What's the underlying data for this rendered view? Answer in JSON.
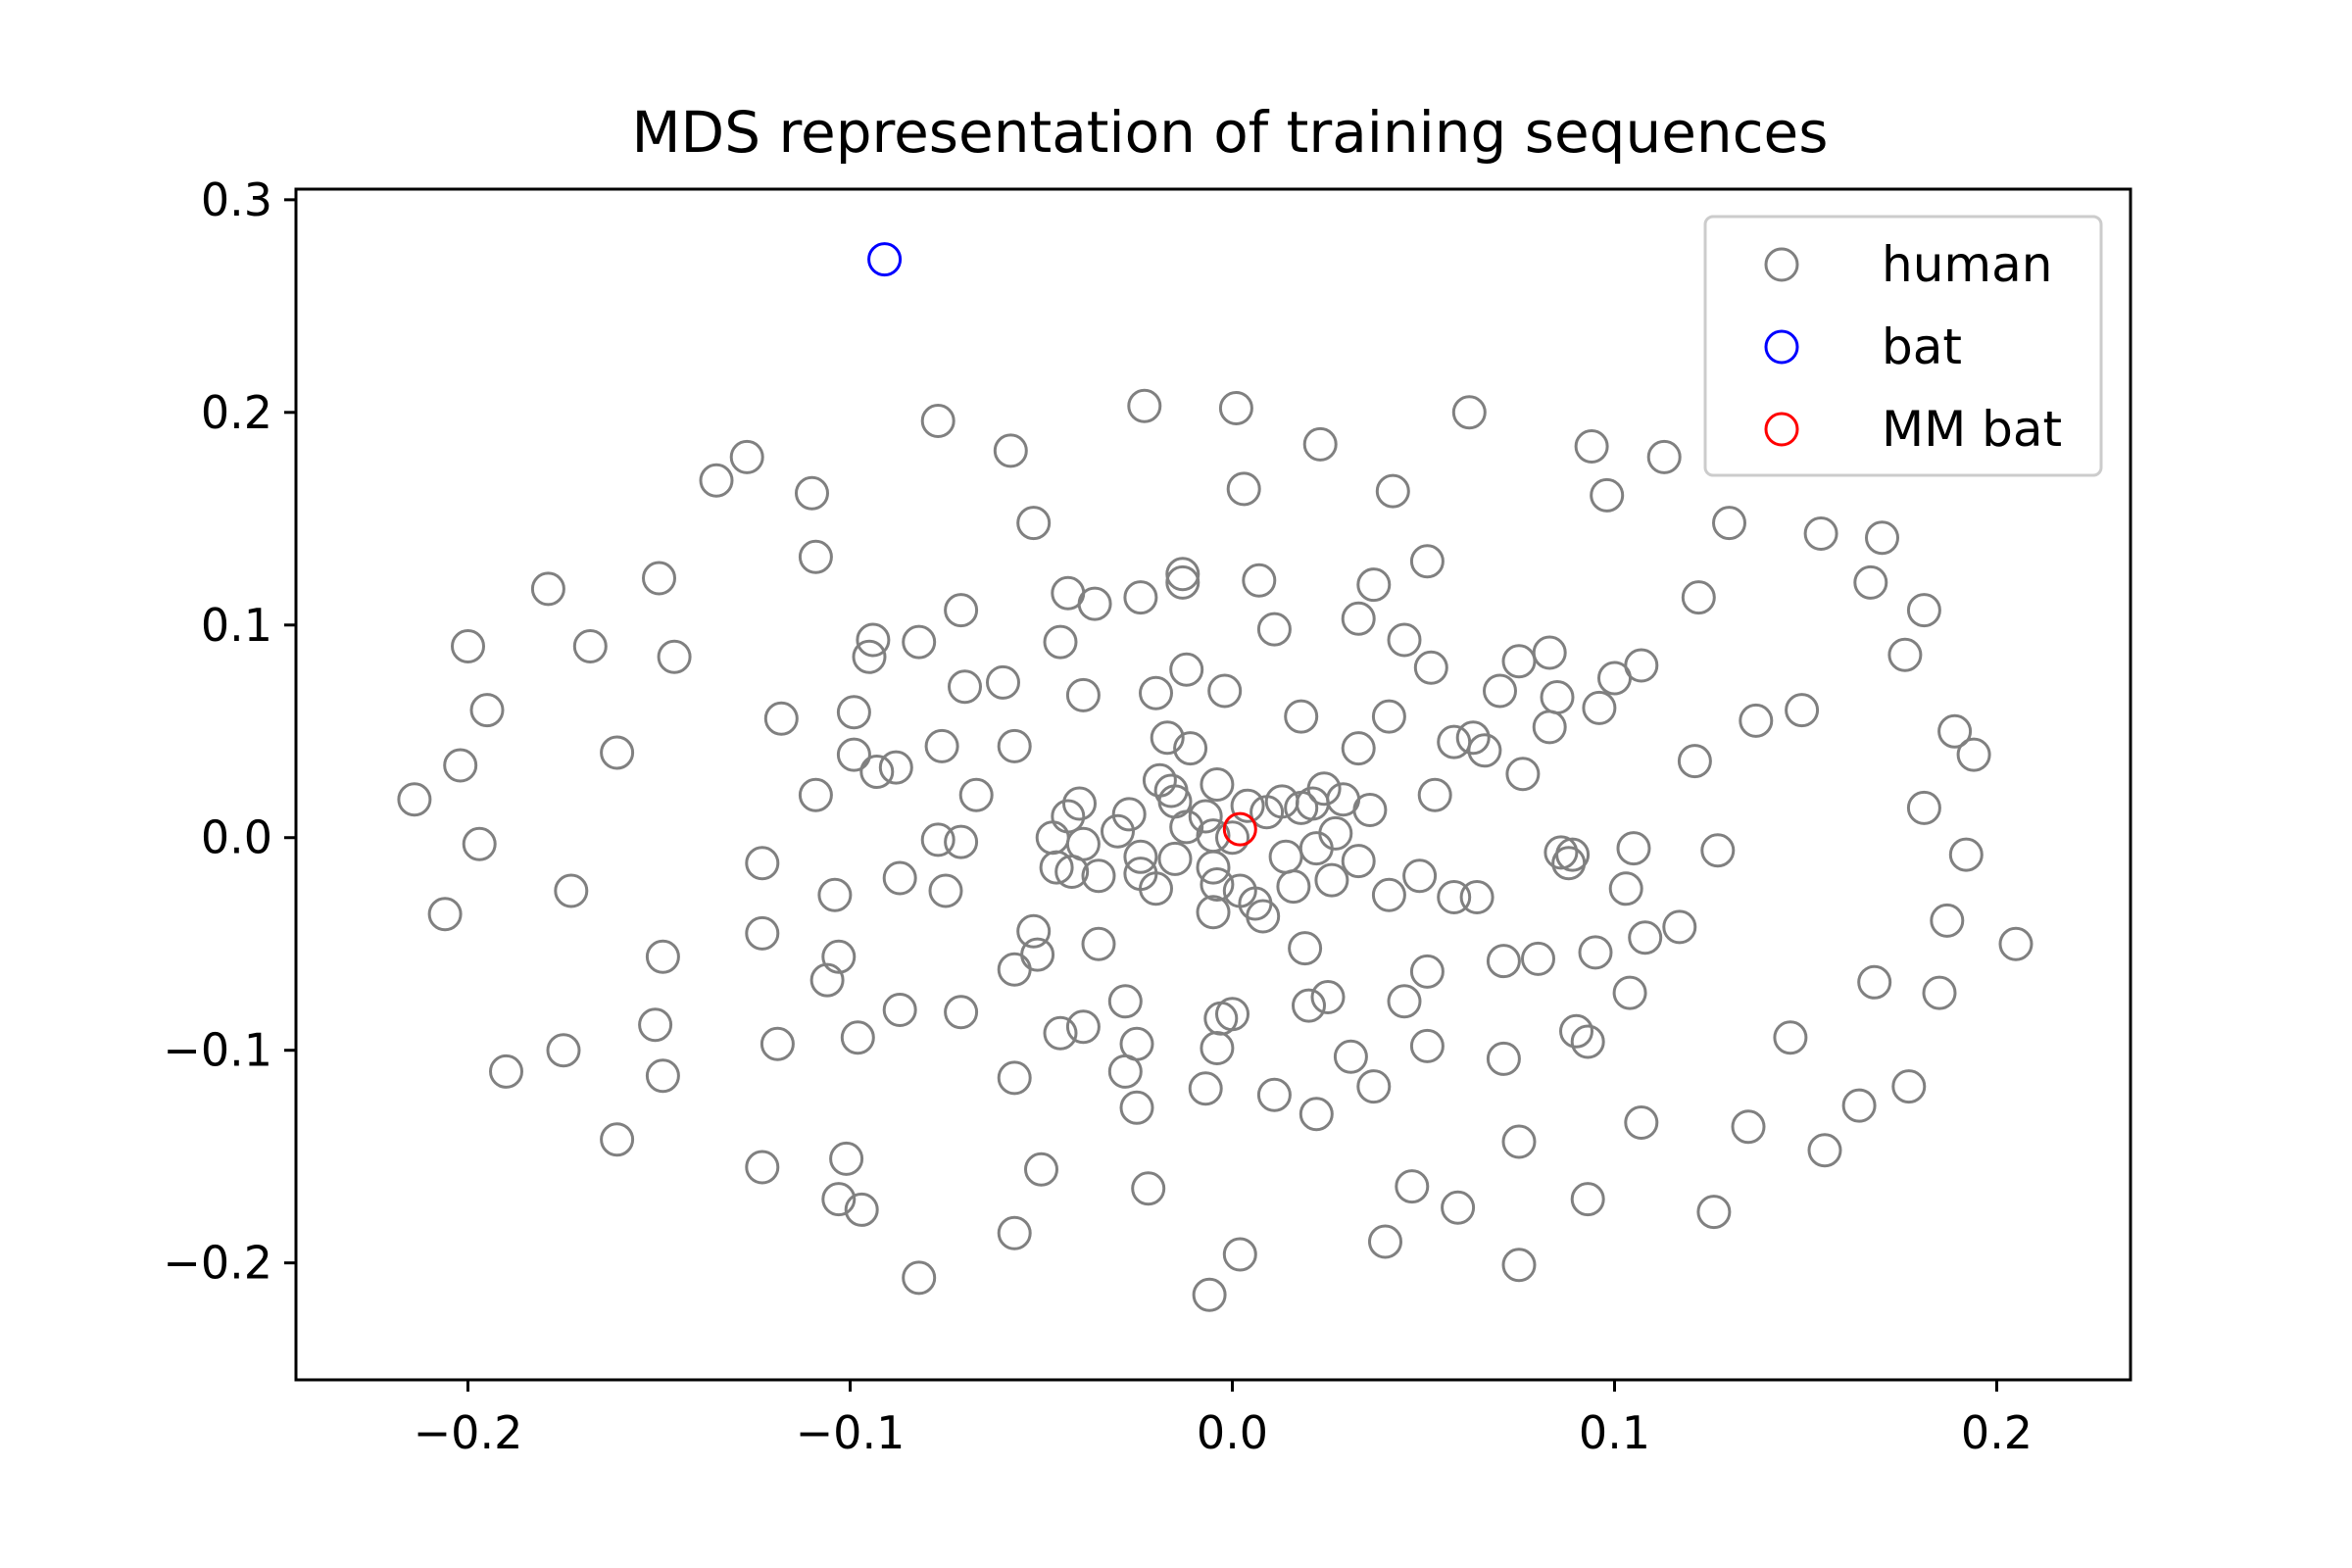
{
  "chart_data": {
    "type": "scatter",
    "title": "MDS representation of training sequences",
    "xlabel": "",
    "ylabel": "",
    "xlim": [
      -0.245,
      0.235
    ],
    "ylim": [
      -0.255,
      0.305
    ],
    "xticks": [
      {
        "value": -0.2,
        "label": "−0.2"
      },
      {
        "value": -0.1,
        "label": "−0.1"
      },
      {
        "value": 0.0,
        "label": "0.0"
      },
      {
        "value": 0.1,
        "label": "0.1"
      },
      {
        "value": 0.2,
        "label": "0.2"
      }
    ],
    "yticks": [
      {
        "value": 0.3,
        "label": "0.3"
      },
      {
        "value": 0.2,
        "label": "0.2"
      },
      {
        "value": 0.1,
        "label": "0.1"
      },
      {
        "value": 0.0,
        "label": "0.0"
      },
      {
        "value": -0.1,
        "label": "−0.1"
      },
      {
        "value": -0.2,
        "label": "−0.2"
      }
    ],
    "grid": false,
    "legend_position": "top-right",
    "series": [
      {
        "name": "human",
        "color": "#808080",
        "marker": "open-circle",
        "points": [
          [
            -0.2,
            0.09
          ],
          [
            -0.195,
            0.06
          ],
          [
            -0.214,
            0.018
          ],
          [
            -0.202,
            0.034
          ],
          [
            -0.197,
            -0.003
          ],
          [
            -0.206,
            -0.036
          ],
          [
            -0.19,
            -0.11
          ],
          [
            -0.179,
            0.117
          ],
          [
            -0.168,
            0.09
          ],
          [
            -0.173,
            -0.025
          ],
          [
            -0.175,
            -0.1
          ],
          [
            -0.161,
            0.04
          ],
          [
            -0.161,
            -0.142
          ],
          [
            -0.15,
            0.122
          ],
          [
            -0.146,
            0.085
          ],
          [
            -0.149,
            -0.056
          ],
          [
            -0.151,
            -0.088
          ],
          [
            -0.149,
            -0.112
          ],
          [
            -0.135,
            0.168
          ],
          [
            -0.127,
            0.179
          ],
          [
            -0.123,
            -0.012
          ],
          [
            -0.123,
            -0.045
          ],
          [
            -0.123,
            -0.155
          ],
          [
            -0.118,
            0.056
          ],
          [
            -0.119,
            -0.097
          ],
          [
            -0.11,
            0.162
          ],
          [
            -0.109,
            0.132
          ],
          [
            -0.109,
            0.02
          ],
          [
            -0.106,
            -0.067
          ],
          [
            -0.104,
            -0.027
          ],
          [
            -0.103,
            -0.056
          ],
          [
            -0.103,
            -0.17
          ],
          [
            -0.101,
            -0.151
          ],
          [
            -0.099,
            0.059
          ],
          [
            -0.099,
            0.039
          ],
          [
            -0.098,
            -0.094
          ],
          [
            -0.097,
            -0.175
          ],
          [
            -0.094,
            0.093
          ],
          [
            -0.095,
            0.085
          ],
          [
            -0.093,
            0.031
          ],
          [
            -0.088,
            0.033
          ],
          [
            -0.087,
            -0.019
          ],
          [
            -0.087,
            -0.081
          ],
          [
            -0.082,
            0.092
          ],
          [
            -0.082,
            -0.207
          ],
          [
            -0.077,
            0.196
          ],
          [
            -0.077,
            -0.001
          ],
          [
            -0.076,
            0.043
          ],
          [
            -0.075,
            -0.025
          ],
          [
            -0.071,
            0.107
          ],
          [
            -0.071,
            -0.002
          ],
          [
            -0.071,
            -0.082
          ],
          [
            -0.07,
            0.071
          ],
          [
            -0.067,
            0.02
          ],
          [
            -0.06,
            0.073
          ],
          [
            -0.058,
            0.182
          ],
          [
            -0.057,
            0.043
          ],
          [
            -0.057,
            -0.062
          ],
          [
            -0.057,
            -0.113
          ],
          [
            -0.057,
            -0.186
          ],
          [
            -0.052,
            0.148
          ],
          [
            -0.052,
            -0.044
          ],
          [
            -0.051,
            -0.055
          ],
          [
            -0.05,
            -0.156
          ],
          [
            -0.047,
            0.0
          ],
          [
            -0.046,
            -0.014
          ],
          [
            -0.045,
            0.092
          ],
          [
            -0.045,
            -0.092
          ],
          [
            -0.043,
            0.115
          ],
          [
            -0.043,
            0.01
          ],
          [
            -0.042,
            -0.016
          ],
          [
            -0.04,
            0.016
          ],
          [
            -0.039,
            0.067
          ],
          [
            -0.039,
            -0.003
          ],
          [
            -0.039,
            -0.089
          ],
          [
            -0.036,
            0.11
          ],
          [
            -0.035,
            -0.018
          ],
          [
            -0.035,
            -0.05
          ],
          [
            -0.03,
            0.003
          ],
          [
            -0.028,
            -0.077
          ],
          [
            -0.028,
            -0.11
          ],
          [
            -0.027,
            0.011
          ],
          [
            -0.025,
            -0.097
          ],
          [
            -0.025,
            -0.127
          ],
          [
            -0.024,
            0.113
          ],
          [
            -0.024,
            -0.009
          ],
          [
            -0.024,
            -0.017
          ],
          [
            -0.023,
            0.203
          ],
          [
            -0.022,
            -0.165
          ],
          [
            -0.02,
            0.068
          ],
          [
            -0.02,
            -0.024
          ],
          [
            -0.019,
            0.027
          ],
          [
            -0.017,
            0.047
          ],
          [
            -0.016,
            0.022
          ],
          [
            -0.015,
            0.017
          ],
          [
            -0.015,
            -0.01
          ],
          [
            -0.013,
            0.124
          ],
          [
            -0.013,
            0.12
          ],
          [
            -0.012,
            0.079
          ],
          [
            -0.012,
            0.005
          ],
          [
            -0.011,
            0.042
          ],
          [
            -0.007,
            0.01
          ],
          [
            -0.007,
            -0.118
          ],
          [
            -0.006,
            -0.215
          ],
          [
            -0.005,
            0.001
          ],
          [
            -0.005,
            -0.014
          ],
          [
            -0.005,
            -0.035
          ],
          [
            -0.004,
            0.025
          ],
          [
            -0.004,
            -0.022
          ],
          [
            -0.004,
            -0.099
          ],
          [
            -0.003,
            -0.085
          ],
          [
            -0.002,
            0.069
          ],
          [
            0.0,
            0.0
          ],
          [
            0.0,
            -0.083
          ],
          [
            0.001,
            0.202
          ],
          [
            0.002,
            -0.025
          ],
          [
            0.002,
            -0.196
          ],
          [
            0.003,
            0.164
          ],
          [
            0.004,
            0.015
          ],
          [
            0.006,
            -0.031
          ],
          [
            0.007,
            0.121
          ],
          [
            0.008,
            -0.037
          ],
          [
            0.009,
            0.012
          ],
          [
            0.011,
            0.098
          ],
          [
            0.011,
            -0.121
          ],
          [
            0.013,
            0.017
          ],
          [
            0.014,
            -0.009
          ],
          [
            0.016,
            -0.023
          ],
          [
            0.018,
            0.057
          ],
          [
            0.018,
            0.014
          ],
          [
            0.019,
            -0.052
          ],
          [
            0.02,
            -0.079
          ],
          [
            0.021,
            0.016
          ],
          [
            0.022,
            -0.005
          ],
          [
            0.022,
            -0.13
          ],
          [
            0.023,
            0.185
          ],
          [
            0.024,
            0.023
          ],
          [
            0.025,
            -0.075
          ],
          [
            0.026,
            -0.02
          ],
          [
            0.027,
            0.002
          ],
          [
            0.029,
            0.018
          ],
          [
            0.031,
            -0.103
          ],
          [
            0.033,
            0.103
          ],
          [
            0.033,
            0.042
          ],
          [
            0.033,
            -0.011
          ],
          [
            0.036,
            0.013
          ],
          [
            0.037,
            0.119
          ],
          [
            0.037,
            -0.117
          ],
          [
            0.04,
            -0.19
          ],
          [
            0.041,
            0.057
          ],
          [
            0.041,
            -0.027
          ],
          [
            0.042,
            0.163
          ],
          [
            0.045,
            0.093
          ],
          [
            0.045,
            -0.077
          ],
          [
            0.047,
            -0.164
          ],
          [
            0.049,
            -0.018
          ],
          [
            0.051,
            0.13
          ],
          [
            0.051,
            -0.063
          ],
          [
            0.051,
            -0.098
          ],
          [
            0.052,
            0.08
          ],
          [
            0.053,
            0.02
          ],
          [
            0.058,
            0.045
          ],
          [
            0.058,
            -0.028
          ],
          [
            0.059,
            -0.174
          ],
          [
            0.062,
            0.2
          ],
          [
            0.063,
            0.047
          ],
          [
            0.064,
            -0.028
          ],
          [
            0.066,
            0.041
          ],
          [
            0.07,
            0.069
          ],
          [
            0.071,
            -0.058
          ],
          [
            0.071,
            -0.104
          ],
          [
            0.075,
            0.083
          ],
          [
            0.075,
            -0.143
          ],
          [
            0.076,
            0.03
          ],
          [
            0.075,
            -0.201
          ],
          [
            0.08,
            -0.057
          ],
          [
            0.083,
            0.087
          ],
          [
            0.083,
            0.052
          ],
          [
            0.085,
            0.066
          ],
          [
            0.086,
            -0.007
          ],
          [
            0.088,
            -0.012
          ],
          [
            0.089,
            -0.008
          ],
          [
            0.09,
            -0.091
          ],
          [
            0.093,
            -0.096
          ],
          [
            0.093,
            -0.17
          ],
          [
            0.094,
            0.184
          ],
          [
            0.095,
            -0.054
          ],
          [
            0.096,
            0.061
          ],
          [
            0.098,
            0.161
          ],
          [
            0.1,
            0.075
          ],
          [
            0.103,
            -0.024
          ],
          [
            0.104,
            -0.073
          ],
          [
            0.105,
            -0.005
          ],
          [
            0.107,
            0.081
          ],
          [
            0.107,
            -0.134
          ],
          [
            0.108,
            -0.047
          ],
          [
            0.113,
            0.179
          ],
          [
            0.117,
            -0.042
          ],
          [
            0.122,
            0.113
          ],
          [
            0.121,
            0.036
          ],
          [
            0.126,
            -0.176
          ],
          [
            0.127,
            -0.006
          ],
          [
            0.13,
            0.148
          ],
          [
            0.135,
            -0.136
          ],
          [
            0.137,
            0.055
          ],
          [
            0.146,
            -0.094
          ],
          [
            0.149,
            0.06
          ],
          [
            0.154,
            0.143
          ],
          [
            0.155,
            -0.147
          ],
          [
            0.164,
            -0.126
          ],
          [
            0.167,
            0.12
          ],
          [
            0.168,
            -0.068
          ],
          [
            0.17,
            0.141
          ],
          [
            0.176,
            0.086
          ],
          [
            0.177,
            -0.117
          ],
          [
            0.181,
            0.107
          ],
          [
            0.181,
            0.014
          ],
          [
            0.185,
            -0.073
          ],
          [
            0.187,
            -0.039
          ],
          [
            0.189,
            0.05
          ],
          [
            0.192,
            -0.008
          ],
          [
            0.194,
            0.039
          ],
          [
            0.205,
            -0.05
          ]
        ]
      },
      {
        "name": "bat",
        "color": "#0000ff",
        "marker": "open-circle",
        "points": [
          [
            -0.091,
            0.272
          ]
        ]
      },
      {
        "name": "MM bat",
        "color": "#ff0000",
        "marker": "open-circle",
        "points": [
          [
            0.002,
            0.004
          ]
        ]
      }
    ]
  }
}
